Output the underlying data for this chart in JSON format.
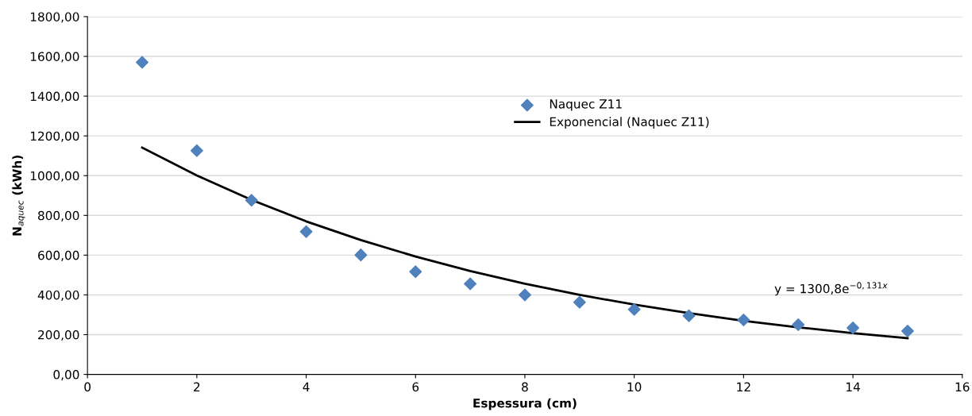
{
  "chart_data": {
    "type": "scatter",
    "xlabel": "Espessura (cm)",
    "ylabel": "N$_{aquec}$ (kWh)",
    "xlim": [
      0,
      16
    ],
    "xticks": [
      0,
      2,
      4,
      6,
      8,
      10,
      12,
      14,
      16
    ],
    "ylim": [
      0,
      1800
    ],
    "yticks": [
      {
        "value": 0,
        "label": "0,00"
      },
      {
        "value": 200,
        "label": "200,00"
      },
      {
        "value": 400,
        "label": "400,00"
      },
      {
        "value": 600,
        "label": "600,00"
      },
      {
        "value": 800,
        "label": "800,00"
      },
      {
        "value": 1000,
        "label": "1000,00"
      },
      {
        "value": 1200,
        "label": "1200,00"
      },
      {
        "value": 1400,
        "label": "1400,00"
      },
      {
        "value": 1600,
        "label": "1600,00"
      },
      {
        "value": 1800,
        "label": "1800,00"
      }
    ],
    "grid": "y",
    "legend": "top center",
    "series": [
      {
        "name": "Naquec Z11",
        "marker": "diamond",
        "color": "#4f81bd",
        "x": [
          1,
          2,
          3,
          4,
          5,
          6,
          7,
          8,
          9,
          10,
          11,
          12,
          13,
          14,
          15
        ],
        "values": [
          1570,
          1126,
          876,
          718,
          601,
          517,
          456,
          400,
          363,
          327,
          295,
          274,
          250,
          234,
          218
        ]
      },
      {
        "name": "Exponencial (Naquec Z11)",
        "type": "line",
        "color": "#000000",
        "x": [
          1,
          2,
          3,
          4,
          5,
          6,
          7,
          8,
          9,
          10,
          11,
          12,
          13,
          14,
          15
        ],
        "values": [
          1141,
          1001,
          878,
          770,
          676,
          593,
          520,
          456,
          400,
          351,
          308,
          270,
          237,
          208,
          182
        ]
      }
    ],
    "annotations": [
      "y = 1300,8e$^{−0,131x}$"
    ]
  }
}
